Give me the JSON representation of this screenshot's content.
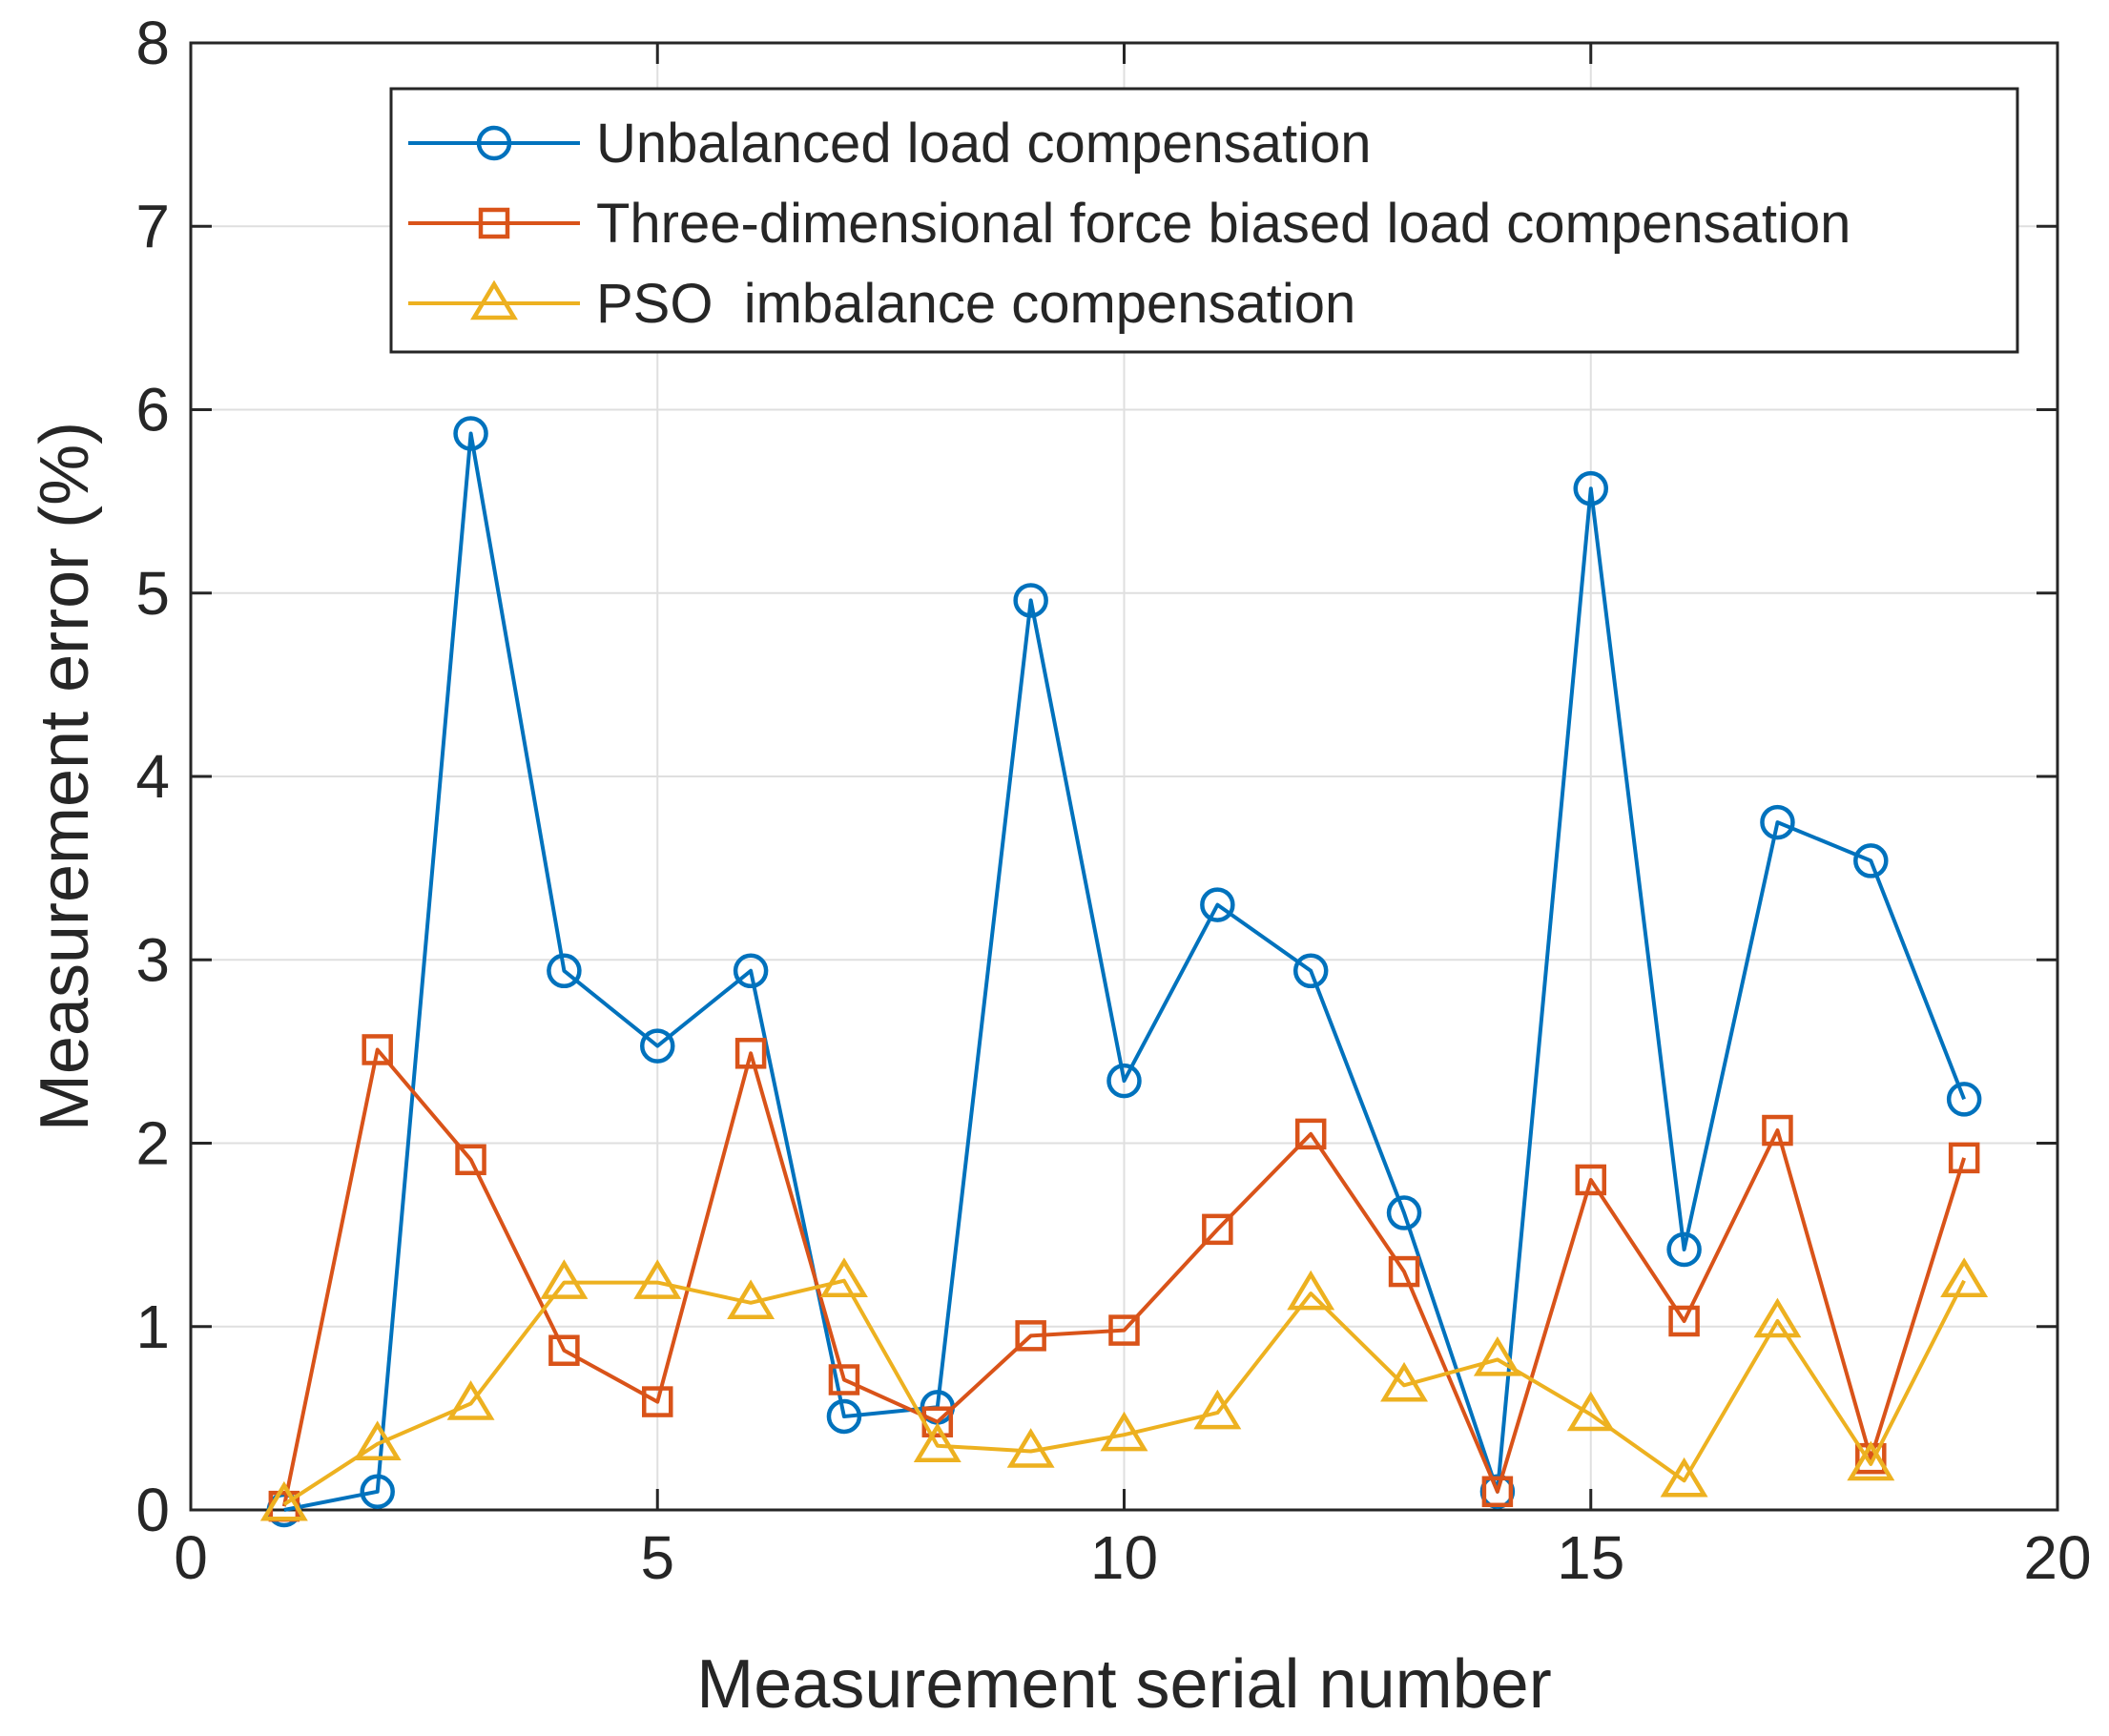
{
  "chart_data": {
    "type": "line",
    "title": "",
    "xlabel": "Measurement serial number",
    "ylabel": "Measurement error (%)",
    "xlim": [
      0,
      20
    ],
    "ylim": [
      0,
      8
    ],
    "xticks": [
      0,
      5,
      10,
      15,
      20
    ],
    "yticks": [
      0,
      1,
      2,
      3,
      4,
      5,
      6,
      7,
      8
    ],
    "grid": true,
    "legend_position": "top-right",
    "x": [
      1,
      2,
      3,
      4,
      5,
      6,
      7,
      8,
      9,
      10,
      11,
      12,
      13,
      14,
      15,
      16,
      17,
      18,
      19
    ],
    "series": [
      {
        "name": "Unbalanced load compensation",
        "color": "#0072BD",
        "marker": "circle",
        "values": [
          0.0,
          0.1,
          5.87,
          2.94,
          2.53,
          2.94,
          0.51,
          0.56,
          4.96,
          2.34,
          3.3,
          2.94,
          1.62,
          0.1,
          5.57,
          1.42,
          3.75,
          3.54,
          2.24
        ]
      },
      {
        "name": "Three-dimensional force biased load compensation",
        "color": "#D95319",
        "marker": "square",
        "values": [
          0.02,
          2.51,
          1.91,
          0.87,
          0.59,
          2.49,
          0.71,
          0.48,
          0.95,
          0.98,
          1.53,
          2.05,
          1.3,
          0.1,
          1.8,
          1.03,
          2.07,
          0.28,
          1.92
        ]
      },
      {
        "name": "PSO  imbalance compensation",
        "color": "#EDB120",
        "marker": "triangle",
        "values": [
          0.03,
          0.36,
          0.58,
          1.24,
          1.24,
          1.13,
          1.25,
          0.35,
          0.32,
          0.41,
          0.53,
          1.18,
          0.68,
          0.82,
          0.52,
          0.16,
          1.03,
          0.25,
          1.25
        ]
      }
    ]
  }
}
